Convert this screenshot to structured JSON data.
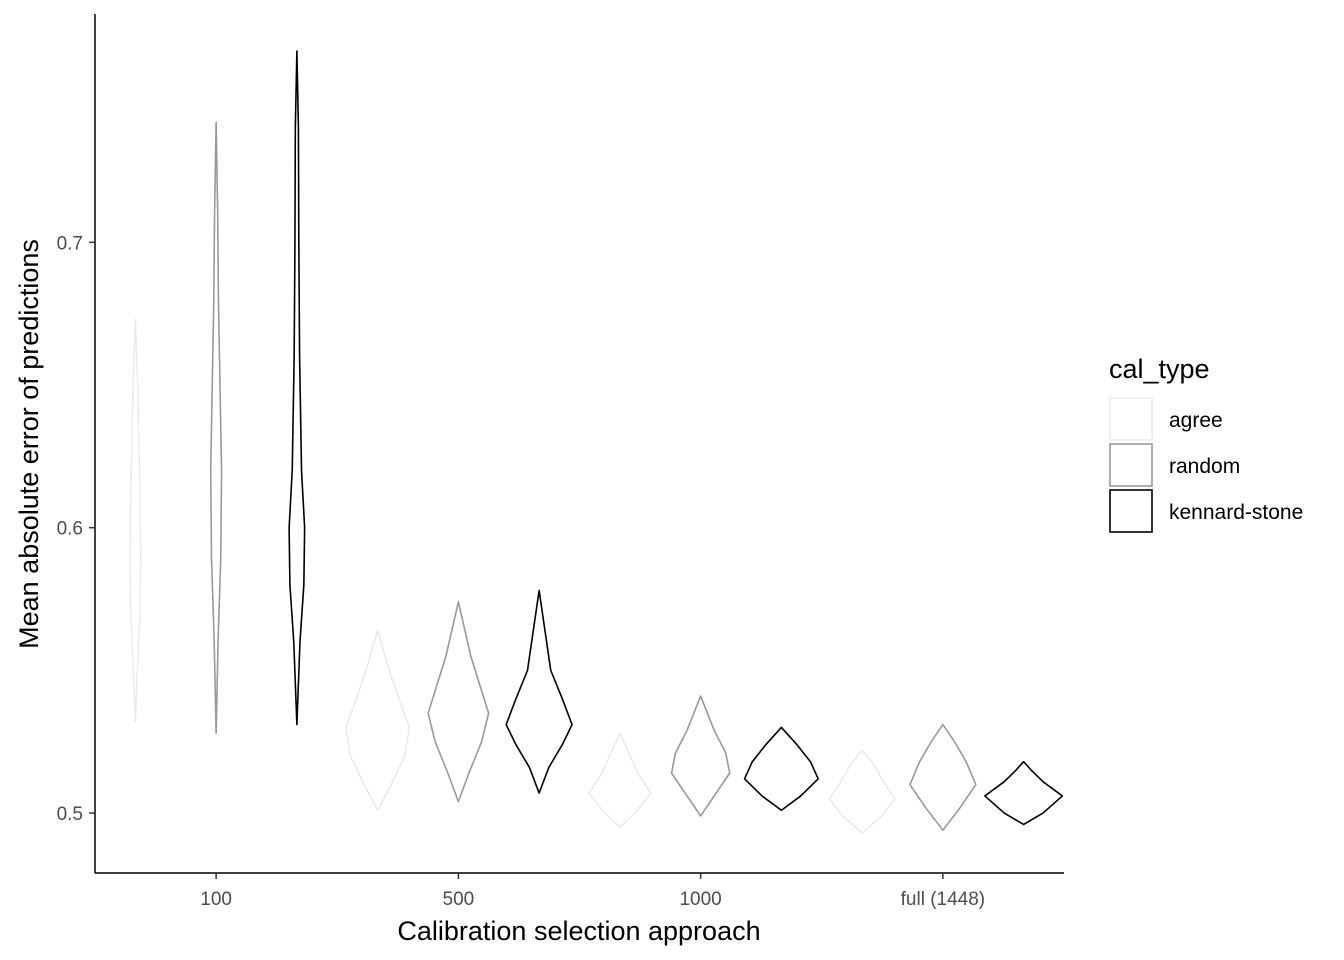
{
  "chart_data": {
    "type": "violin",
    "xlabel": "Calibration selection approach",
    "ylabel": "Mean absolute error of predictions",
    "categories": [
      "100",
      "500",
      "1000",
      "full (1448)"
    ],
    "yticks": [
      0.5,
      0.6,
      0.7
    ],
    "ytick_labels": [
      "0.5",
      "0.6",
      "0.7"
    ],
    "ylim": [
      0.479,
      0.78
    ],
    "grid": false,
    "legend": {
      "title": "cal_type",
      "placement": "right",
      "entries": [
        {
          "label": "agree",
          "color": "#ebebeb"
        },
        {
          "label": "random",
          "color": "#999999"
        },
        {
          "label": "kennard-stone",
          "color": "#000000"
        }
      ]
    },
    "series": [
      {
        "name": "agree",
        "color": "#ebebeb",
        "violins": [
          {
            "category": "100",
            "min": 0.532,
            "max": 0.673,
            "width": [
              [
                0.532,
                0
              ],
              [
                0.55,
                0.05
              ],
              [
                0.57,
                0.12
              ],
              [
                0.59,
                0.14
              ],
              [
                0.61,
                0.12
              ],
              [
                0.63,
                0.09
              ],
              [
                0.65,
                0.06
              ],
              [
                0.673,
                0
              ]
            ]
          },
          {
            "category": "500",
            "min": 0.501,
            "max": 0.564,
            "width": [
              [
                0.501,
                0
              ],
              [
                0.51,
                0.35
              ],
              [
                0.52,
                0.7
              ],
              [
                0.53,
                0.82
              ],
              [
                0.54,
                0.55
              ],
              [
                0.55,
                0.3
              ],
              [
                0.564,
                0
              ]
            ]
          },
          {
            "category": "1000",
            "min": 0.495,
            "max": 0.528,
            "width": [
              [
                0.495,
                0
              ],
              [
                0.501,
                0.45
              ],
              [
                0.507,
                0.8
              ],
              [
                0.513,
                0.5
              ],
              [
                0.519,
                0.3
              ],
              [
                0.528,
                0
              ]
            ]
          },
          {
            "category": "full (1448)",
            "min": 0.493,
            "max": 0.522,
            "width": [
              [
                0.493,
                0
              ],
              [
                0.499,
                0.5
              ],
              [
                0.505,
                0.85
              ],
              [
                0.511,
                0.55
              ],
              [
                0.517,
                0.3
              ],
              [
                0.522,
                0
              ]
            ]
          }
        ]
      },
      {
        "name": "random",
        "color": "#999999",
        "violins": [
          {
            "category": "100",
            "min": 0.528,
            "max": 0.742,
            "width": [
              [
                0.528,
                0
              ],
              [
                0.56,
                0.05
              ],
              [
                0.59,
                0.12
              ],
              [
                0.62,
                0.14
              ],
              [
                0.65,
                0.1
              ],
              [
                0.68,
                0.06
              ],
              [
                0.71,
                0.04
              ],
              [
                0.742,
                0
              ]
            ]
          },
          {
            "category": "500",
            "min": 0.504,
            "max": 0.574,
            "width": [
              [
                0.504,
                0
              ],
              [
                0.515,
                0.3
              ],
              [
                0.525,
                0.6
              ],
              [
                0.535,
                0.78
              ],
              [
                0.545,
                0.55
              ],
              [
                0.555,
                0.32
              ],
              [
                0.574,
                0
              ]
            ]
          },
          {
            "category": "1000",
            "min": 0.499,
            "max": 0.541,
            "width": [
              [
                0.499,
                0
              ],
              [
                0.507,
                0.4
              ],
              [
                0.514,
                0.75
              ],
              [
                0.521,
                0.65
              ],
              [
                0.529,
                0.35
              ],
              [
                0.541,
                0
              ]
            ]
          },
          {
            "category": "full (1448)",
            "min": 0.494,
            "max": 0.531,
            "width": [
              [
                0.494,
                0
              ],
              [
                0.502,
                0.45
              ],
              [
                0.51,
                0.85
              ],
              [
                0.518,
                0.6
              ],
              [
                0.525,
                0.3
              ],
              [
                0.531,
                0
              ]
            ]
          }
        ]
      },
      {
        "name": "kennard-stone",
        "color": "#000000",
        "violins": [
          {
            "category": "100",
            "min": 0.531,
            "max": 0.767,
            "width": [
              [
                0.531,
                0
              ],
              [
                0.56,
                0.08
              ],
              [
                0.58,
                0.18
              ],
              [
                0.6,
                0.2
              ],
              [
                0.62,
                0.12
              ],
              [
                0.66,
                0.07
              ],
              [
                0.7,
                0.05
              ],
              [
                0.74,
                0.04
              ],
              [
                0.767,
                0
              ]
            ]
          },
          {
            "category": "500",
            "min": 0.507,
            "max": 0.578,
            "width": [
              [
                0.507,
                0
              ],
              [
                0.516,
                0.25
              ],
              [
                0.524,
                0.6
              ],
              [
                0.531,
                0.85
              ],
              [
                0.54,
                0.6
              ],
              [
                0.55,
                0.3
              ],
              [
                0.578,
                0
              ]
            ]
          },
          {
            "category": "1000",
            "min": 0.501,
            "max": 0.53,
            "width": [
              [
                0.501,
                0
              ],
              [
                0.506,
                0.5
              ],
              [
                0.512,
                0.95
              ],
              [
                0.518,
                0.75
              ],
              [
                0.524,
                0.4
              ],
              [
                0.53,
                0
              ]
            ]
          },
          {
            "category": "full (1448)",
            "min": 0.496,
            "max": 0.518,
            "width": [
              [
                0.496,
                0
              ],
              [
                0.5,
                0.5
              ],
              [
                0.506,
                1.0
              ],
              [
                0.511,
                0.5
              ],
              [
                0.515,
                0.2
              ],
              [
                0.518,
                0
              ]
            ]
          }
        ]
      }
    ]
  }
}
